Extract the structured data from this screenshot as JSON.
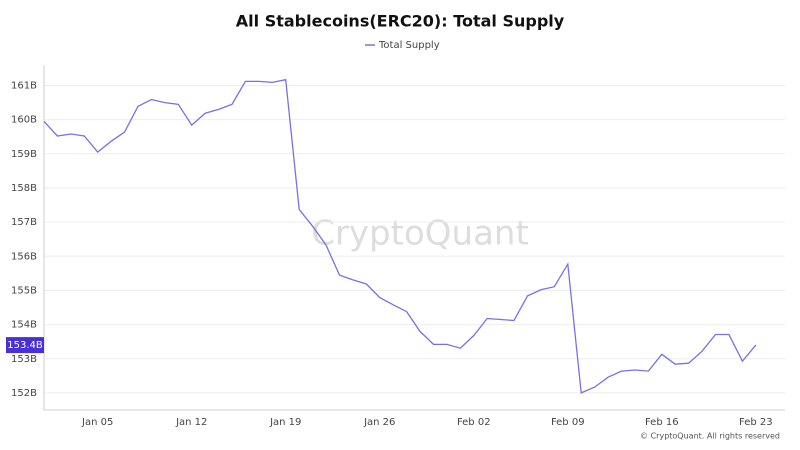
{
  "chart_data": {
    "type": "line",
    "title": "All Stablecoins(ERC20): Total Supply",
    "watermark": "CryptoQuant",
    "footer": "© CryptoQuant. All rights reserved",
    "categories": [
      null,
      null,
      null,
      null,
      "Jan 05",
      null,
      null,
      null,
      null,
      null,
      null,
      "Jan 12",
      null,
      null,
      null,
      null,
      null,
      null,
      "Jan 19",
      null,
      null,
      null,
      null,
      null,
      null,
      "Jan 26",
      null,
      null,
      null,
      null,
      null,
      null,
      "Feb 02",
      null,
      null,
      null,
      null,
      null,
      null,
      "Feb 09",
      null,
      null,
      null,
      null,
      null,
      null,
      "Feb 16",
      null,
      null,
      null,
      null,
      null,
      null,
      "Feb 23"
    ],
    "series": [
      {
        "name": "Total Supply",
        "color": "#7b6fe3",
        "values": [
          159.95,
          159.52,
          159.58,
          159.52,
          159.05,
          159.37,
          159.64,
          160.39,
          160.59,
          160.5,
          160.45,
          159.84,
          160.19,
          160.3,
          160.45,
          161.12,
          161.12,
          161.09,
          161.17,
          157.37,
          156.88,
          156.33,
          155.45,
          155.31,
          155.19,
          154.79,
          154.58,
          154.38,
          153.8,
          153.42,
          153.42,
          153.31,
          153.68,
          154.18,
          154.15,
          154.12,
          154.84,
          155.02,
          155.11,
          155.77,
          152.0,
          152.17,
          152.46,
          152.64,
          152.67,
          152.64,
          153.13,
          152.84,
          152.87,
          153.22,
          153.71,
          153.71,
          152.93,
          153.4
        ]
      }
    ],
    "current_value": {
      "value": 153.4,
      "label": "153.4B",
      "color": "#4b2fd6"
    },
    "ylim": [
      151.5,
      161.6
    ],
    "yticks": [
      {
        "value": 152,
        "label": "152B"
      },
      {
        "value": 153,
        "label": "153B"
      },
      {
        "value": 154,
        "label": "154B"
      },
      {
        "value": 155,
        "label": "155B"
      },
      {
        "value": 156,
        "label": "156B"
      },
      {
        "value": 157,
        "label": "157B"
      },
      {
        "value": 158,
        "label": "158B"
      },
      {
        "value": 159,
        "label": "159B"
      },
      {
        "value": 160,
        "label": "160B"
      },
      {
        "value": 161,
        "label": "161B"
      }
    ],
    "grid": true
  }
}
